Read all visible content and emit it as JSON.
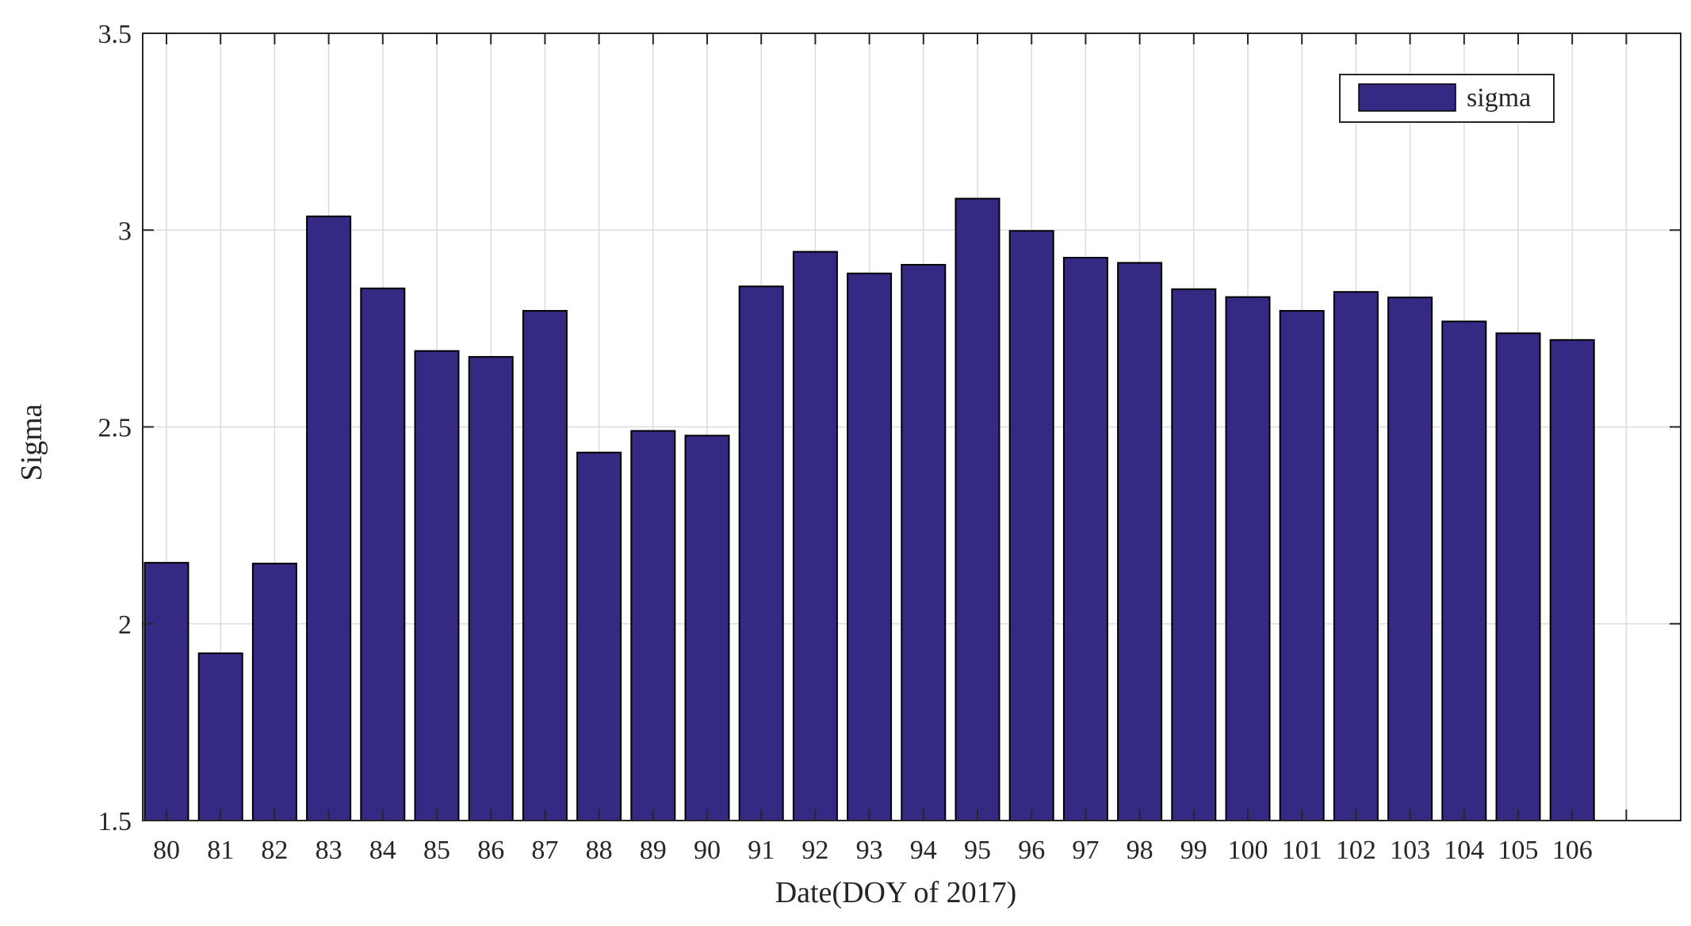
{
  "chart_data": {
    "type": "bar",
    "categories": [
      "80",
      "81",
      "82",
      "83",
      "84",
      "85",
      "86",
      "87",
      "88",
      "89",
      "90",
      "91",
      "92",
      "93",
      "94",
      "95",
      "96",
      "97",
      "98",
      "99",
      "100",
      "101",
      "102",
      "103",
      "104",
      "105",
      "106"
    ],
    "series": [
      {
        "name": "sigma",
        "values": [
          2.155,
          1.925,
          2.153,
          3.035,
          2.852,
          2.693,
          2.678,
          2.795,
          2.435,
          2.49,
          2.478,
          2.857,
          2.945,
          2.89,
          2.912,
          3.08,
          2.998,
          2.93,
          2.917,
          2.85,
          2.83,
          2.795,
          2.843,
          2.829,
          2.768,
          2.738,
          2.721
        ]
      }
    ],
    "xlabel": "Date(DOY of 2017)",
    "ylabel": "Sigma",
    "ylim": [
      1.5,
      3.5
    ],
    "yticks": [
      "1.5",
      "2",
      "2.5",
      "3",
      "3.5"
    ],
    "grid": true,
    "legend_position": "top-right",
    "colors": {
      "bar_fill": "#342A84",
      "bar_edge": "#000000",
      "grid": "#dcdcdc",
      "axis": "#262626"
    }
  }
}
